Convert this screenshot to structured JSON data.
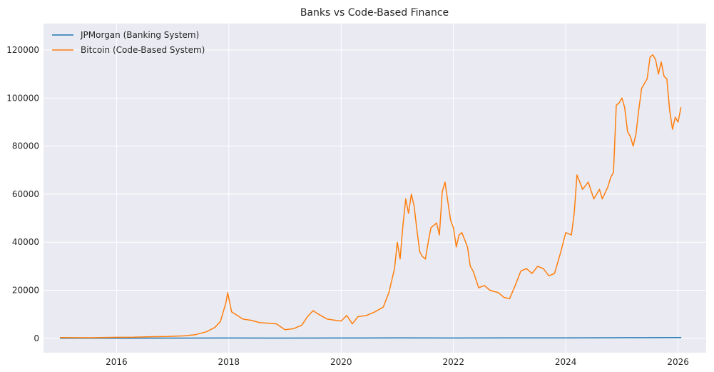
{
  "chart_data": {
    "type": "line",
    "title": "Banks vs Code-Based Finance",
    "xlabel": "",
    "ylabel": "",
    "xlim": [
      2014.7,
      2026.5
    ],
    "ylim": [
      -6000,
      131000
    ],
    "x_ticks": [
      2016,
      2018,
      2020,
      2022,
      2024,
      2026
    ],
    "x_tick_labels": [
      "2016",
      "2018",
      "2020",
      "2022",
      "2024",
      "2026"
    ],
    "y_ticks": [
      0,
      20000,
      40000,
      60000,
      80000,
      100000,
      120000
    ],
    "y_tick_labels": [
      "0",
      "20000",
      "40000",
      "60000",
      "80000",
      "100000",
      "120000"
    ],
    "grid": true,
    "legend_position": "top-left",
    "colors": {
      "plot_bg": "#eaeaf2",
      "grid": "#ffffff",
      "series_0": "#1f77b4",
      "series_1": "#ff7f0e"
    },
    "series": [
      {
        "name": "JPMorgan (Banking System)",
        "x": [
          2015.0,
          2016.0,
          2017.0,
          2018.0,
          2019.0,
          2020.0,
          2021.0,
          2022.0,
          2023.0,
          2024.0,
          2025.0,
          2026.05
        ],
        "y": [
          60,
          60,
          85,
          110,
          100,
          130,
          150,
          130,
          140,
          190,
          250,
          320
        ]
      },
      {
        "name": "Bitcoin (Code-Based System)",
        "x": [
          2015.0,
          2015.5,
          2016.0,
          2016.3,
          2016.6,
          2016.9,
          2017.2,
          2017.4,
          2017.6,
          2017.75,
          2017.85,
          2017.95,
          2017.98,
          2018.05,
          2018.15,
          2018.25,
          2018.4,
          2018.55,
          2018.7,
          2018.85,
          2019.0,
          2019.15,
          2019.3,
          2019.4,
          2019.5,
          2019.6,
          2019.75,
          2019.9,
          2020.0,
          2020.1,
          2020.2,
          2020.3,
          2020.45,
          2020.6,
          2020.75,
          2020.85,
          2020.95,
          2021.0,
          2021.05,
          2021.1,
          2021.15,
          2021.2,
          2021.25,
          2021.3,
          2021.35,
          2021.4,
          2021.45,
          2021.5,
          2021.55,
          2021.6,
          2021.7,
          2021.75,
          2021.8,
          2021.85,
          2021.9,
          2021.95,
          2022.0,
          2022.05,
          2022.1,
          2022.15,
          2022.2,
          2022.25,
          2022.3,
          2022.35,
          2022.45,
          2022.55,
          2022.65,
          2022.8,
          2022.9,
          2023.0,
          2023.1,
          2023.2,
          2023.3,
          2023.4,
          2023.5,
          2023.6,
          2023.7,
          2023.8,
          2023.9,
          2024.0,
          2024.1,
          2024.15,
          2024.2,
          2024.3,
          2024.4,
          2024.5,
          2024.6,
          2024.65,
          2024.75,
          2024.8,
          2024.85,
          2024.9,
          2024.95,
          2025.0,
          2025.05,
          2025.1,
          2025.15,
          2025.2,
          2025.25,
          2025.3,
          2025.35,
          2025.4,
          2025.45,
          2025.5,
          2025.55,
          2025.6,
          2025.65,
          2025.7,
          2025.75,
          2025.8,
          2025.85,
          2025.9,
          2025.95,
          2026.0,
          2026.05
        ],
        "y": [
          300,
          250,
          430,
          450,
          650,
          750,
          1000,
          1500,
          2700,
          4500,
          7000,
          15000,
          19000,
          11000,
          9500,
          8000,
          7500,
          6500,
          6300,
          6000,
          3600,
          4000,
          5500,
          9000,
          11500,
          10000,
          8000,
          7500,
          7200,
          9500,
          6000,
          9000,
          9500,
          11000,
          13000,
          19000,
          29000,
          40000,
          33000,
          47000,
          58000,
          52000,
          60000,
          55000,
          45000,
          36000,
          34000,
          33000,
          40000,
          46000,
          48000,
          43000,
          61000,
          65000,
          57000,
          49000,
          46000,
          38000,
          43000,
          44000,
          41000,
          38000,
          30000,
          28000,
          21000,
          22000,
          20000,
          19000,
          17000,
          16500,
          22000,
          28000,
          29000,
          27000,
          30000,
          29000,
          26000,
          27000,
          35000,
          44000,
          43000,
          52000,
          68000,
          62000,
          65000,
          58000,
          62000,
          58000,
          63000,
          67000,
          69000,
          97000,
          98000,
          100000,
          96000,
          86000,
          84000,
          80000,
          85000,
          95000,
          104000,
          106000,
          108000,
          117000,
          118000,
          116000,
          110000,
          115000,
          109000,
          108000,
          95000,
          87000,
          92000,
          90000,
          96000
        ]
      }
    ]
  }
}
